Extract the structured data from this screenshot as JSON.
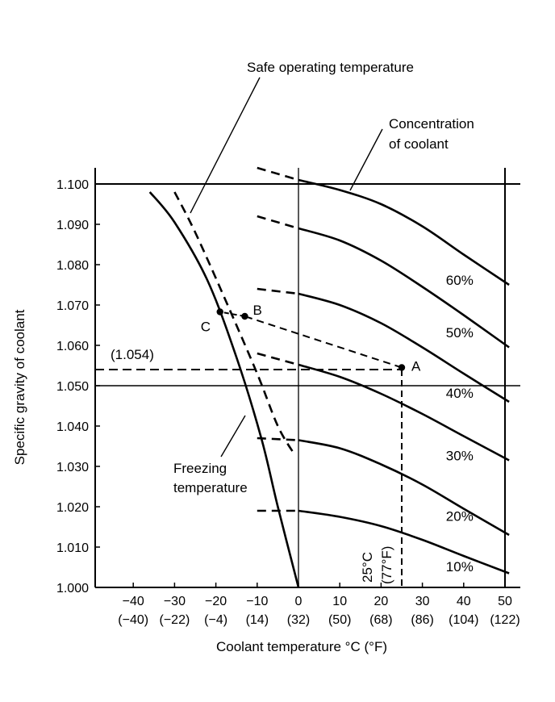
{
  "chart_data": {
    "type": "line",
    "xlabel": "Coolant temperature °C (°F)",
    "ylabel": "Specific gravity of coolant",
    "xlim": [
      -50,
      53
    ],
    "ylim": [
      1.0,
      1.104
    ],
    "x_ticks": [
      {
        "value": -40,
        "c": "−40",
        "f": "(−40)"
      },
      {
        "value": -30,
        "c": "−30",
        "f": "(−22)"
      },
      {
        "value": -20,
        "c": "−20",
        "f": "(−4)"
      },
      {
        "value": -10,
        "c": "−10",
        "f": "(14)"
      },
      {
        "value": 0,
        "c": "0",
        "f": "(32)"
      },
      {
        "value": 10,
        "c": "10",
        "f": "(50)"
      },
      {
        "value": 20,
        "c": "20",
        "f": "(68)"
      },
      {
        "value": 30,
        "c": "30",
        "f": "(86)"
      },
      {
        "value": 40,
        "c": "40",
        "f": "(104)"
      },
      {
        "value": 50,
        "c": "50",
        "f": "(122)"
      }
    ],
    "y_ticks": [
      {
        "value": 1.0,
        "label": "1.000"
      },
      {
        "value": 1.01,
        "label": "1.010"
      },
      {
        "value": 1.02,
        "label": "1.020"
      },
      {
        "value": 1.03,
        "label": "1.030"
      },
      {
        "value": 1.04,
        "label": "1.040"
      },
      {
        "value": 1.05,
        "label": "1.050"
      },
      {
        "value": 1.06,
        "label": "1.060"
      },
      {
        "value": 1.07,
        "label": "1.070"
      },
      {
        "value": 1.08,
        "label": "1.080"
      },
      {
        "value": 1.09,
        "label": "1.090"
      },
      {
        "value": 1.1,
        "label": "1.100"
      }
    ],
    "reference_lines": {
      "horizontal": [
        1.1,
        1.05
      ],
      "vertical": [
        0,
        50
      ]
    },
    "series": [
      {
        "name": "10%",
        "dashed_points": [
          [
            -10,
            1.019
          ],
          [
            0,
            1.019
          ]
        ],
        "points": [
          [
            0,
            1.019
          ],
          [
            10,
            1.0175
          ],
          [
            20,
            1.0152
          ],
          [
            30,
            1.0118
          ],
          [
            40,
            1.0078
          ],
          [
            51,
            1.0035
          ]
        ]
      },
      {
        "name": "20%",
        "dashed_points": [
          [
            -10,
            1.037
          ],
          [
            0,
            1.0365
          ]
        ],
        "points": [
          [
            0,
            1.0365
          ],
          [
            10,
            1.0345
          ],
          [
            20,
            1.0305
          ],
          [
            30,
            1.0255
          ],
          [
            40,
            1.0195
          ],
          [
            51,
            1.013
          ]
        ]
      },
      {
        "name": "30%",
        "dashed_points": [
          [
            -10,
            1.058
          ],
          [
            0,
            1.0552
          ]
        ],
        "points": [
          [
            0,
            1.0552
          ],
          [
            10,
            1.0522
          ],
          [
            20,
            1.048
          ],
          [
            30,
            1.043
          ],
          [
            40,
            1.0375
          ],
          [
            51,
            1.0315
          ]
        ]
      },
      {
        "name": "40%",
        "dashed_points": [
          [
            -10,
            1.074
          ],
          [
            0,
            1.0728
          ]
        ],
        "points": [
          [
            0,
            1.0728
          ],
          [
            10,
            1.07
          ],
          [
            20,
            1.0655
          ],
          [
            30,
            1.0595
          ],
          [
            40,
            1.053
          ],
          [
            51,
            1.046
          ]
        ]
      },
      {
        "name": "50%",
        "dashed_points": [
          [
            -10,
            1.092
          ],
          [
            0,
            1.089
          ]
        ],
        "points": [
          [
            0,
            1.089
          ],
          [
            10,
            1.086
          ],
          [
            20,
            1.081
          ],
          [
            30,
            1.0745
          ],
          [
            40,
            1.0675
          ],
          [
            51,
            1.0595
          ]
        ]
      },
      {
        "name": "60%",
        "dashed_points": [
          [
            -10,
            1.104
          ],
          [
            0,
            1.101
          ]
        ],
        "points": [
          [
            0,
            1.101
          ],
          [
            10,
            1.0985
          ],
          [
            20,
            1.095
          ],
          [
            30,
            1.0895
          ],
          [
            40,
            1.0825
          ],
          [
            51,
            1.075
          ]
        ]
      }
    ],
    "freezing_curve": {
      "name": "Freezing temperature",
      "points": [
        [
          -36,
          1.098
        ],
        [
          -30,
          1.0905
        ],
        [
          -22,
          1.076
        ],
        [
          -15,
          1.057
        ],
        [
          -9,
          1.037
        ],
        [
          -5,
          1.02
        ],
        [
          0,
          1.0
        ]
      ]
    },
    "safe_curve": {
      "name": "Safe operating temperature",
      "points": [
        [
          -30,
          1.098
        ],
        [
          -25,
          1.088
        ],
        [
          -18,
          1.072
        ],
        [
          -10,
          1.053
        ],
        [
          -5,
          1.04
        ],
        [
          -1,
          1.033
        ]
      ]
    },
    "example_path": {
      "points": [
        {
          "name": "A",
          "x": 25,
          "y": 1.0545
        },
        {
          "name": "B",
          "x": -13,
          "y": 1.0672
        },
        {
          "name": "C",
          "x": -19,
          "y": 1.0683
        }
      ],
      "gravity_label": "(1.054)",
      "gravity_value": 1.054,
      "temperature_label": "25°C (77°F)",
      "temperature_value": 25
    },
    "annotations": {
      "safe": "Safe operating temperature",
      "concentration_1": "Concentration",
      "concentration_2": "of coolant",
      "freezing_1": "Freezing",
      "freezing_2": "temperature",
      "temp_c": "25°C",
      "temp_f": "(77°F)"
    }
  }
}
